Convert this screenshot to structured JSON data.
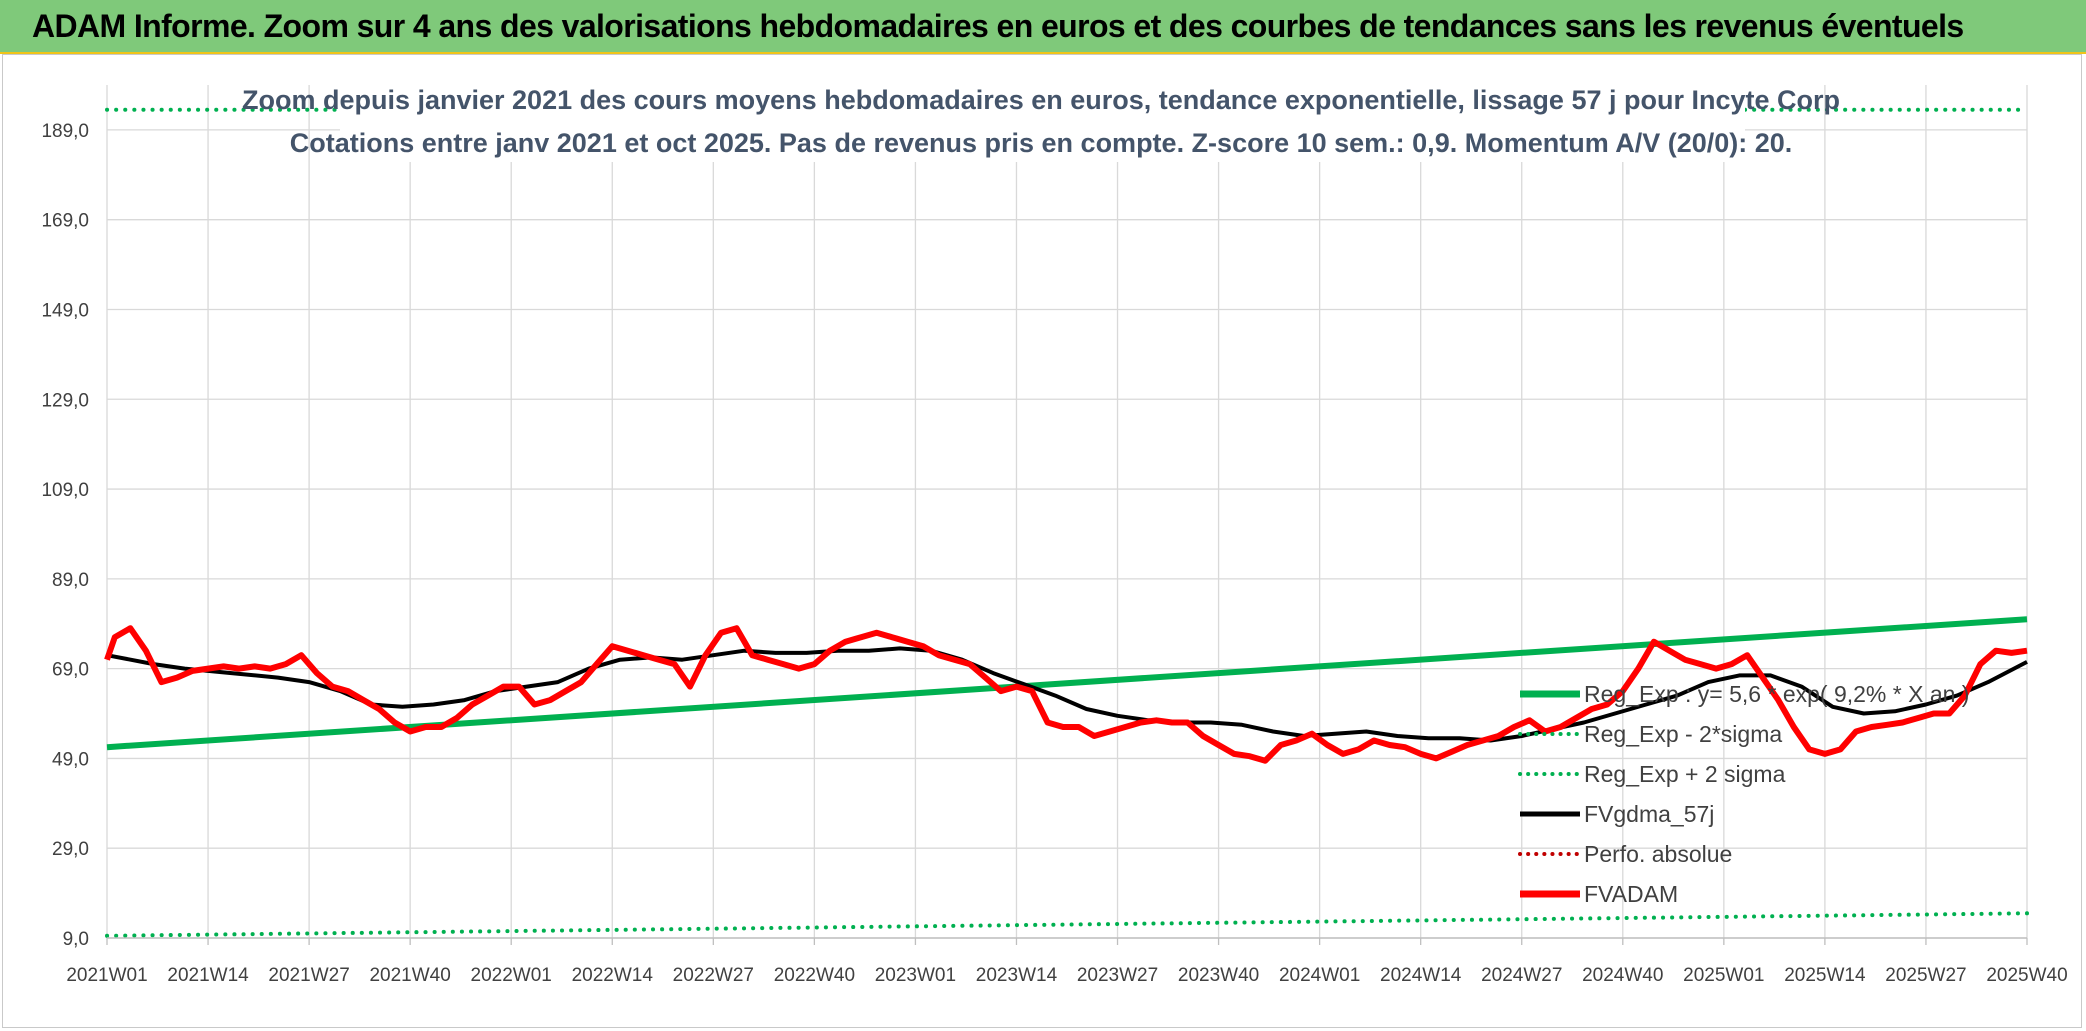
{
  "header": {
    "title": "ADAM Informe. Zoom sur 4 ans des valorisations hebdomadaires en euros et des courbes de tendances sans les revenus éventuels"
  },
  "colors": {
    "banner": "#7fc97a",
    "reg": "#00b050",
    "price": "#ff0000",
    "mma": "#000000",
    "perfo": "#c00000",
    "title_text": "#44546a"
  },
  "chart_data": {
    "type": "line",
    "title_line1": "Zoom depuis janvier 2021 des cours moyens hebdomadaires en euros, tendance exponentielle, lissage 57 j pour Incyte Corp",
    "title_line2": "Cotations entre janv 2021 et oct 2025. Pas de revenus pris en compte. Z-score 10 sem.: 0,9. Momentum A/V (20/0): 20.",
    "ylim": [
      9,
      199
    ],
    "yticks": [
      "9,0",
      "29,0",
      "49,0",
      "69,0",
      "89,0",
      "109,0",
      "129,0",
      "149,0",
      "169,0",
      "189,0"
    ],
    "ytick_values": [
      9,
      29,
      49,
      69,
      89,
      109,
      129,
      149,
      169,
      189
    ],
    "x_range": [
      0,
      247
    ],
    "xticks": [
      "2021W01",
      "2021W14",
      "2021W27",
      "2021W40",
      "2022W01",
      "2022W14",
      "2022W27",
      "2022W40",
      "2023W01",
      "2023W14",
      "2023W27",
      "2023W40",
      "2024W01",
      "2024W14",
      "2024W27",
      "2024W40",
      "2025W01",
      "2025W14",
      "2025W27",
      "2025W40"
    ],
    "xtick_positions": [
      0,
      13,
      26,
      39,
      52,
      65,
      78,
      91,
      104,
      117,
      130,
      143,
      156,
      169,
      182,
      195,
      208,
      221,
      234,
      247
    ],
    "series": [
      {
        "name": "Reg_Exp : y= 5,6 * exp( 9,2% * X an )",
        "style": "solid-thick",
        "x": [
          0,
          247
        ],
        "values": [
          51.5,
          80
        ]
      },
      {
        "name": "Reg_Exp - 2*sigma",
        "style": "dotted",
        "x": [
          0,
          247
        ],
        "values": [
          9.5,
          14.5
        ]
      },
      {
        "name": "Reg_Exp + 2 sigma",
        "style": "dotted",
        "x": [
          0,
          247
        ],
        "values": [
          193.5,
          193.5
        ]
      },
      {
        "name": "FVgdma_57j",
        "style": "solid",
        "x": [
          0,
          6,
          10,
          16,
          22,
          26,
          30,
          34,
          38,
          42,
          46,
          50,
          54,
          58,
          62,
          66,
          70,
          74,
          78,
          82,
          86,
          90,
          94,
          98,
          102,
          106,
          110,
          114,
          118,
          122,
          126,
          130,
          134,
          138,
          142,
          146,
          150,
          154,
          158,
          162,
          166,
          170,
          174,
          178,
          182,
          186,
          190,
          194,
          198,
          202,
          206,
          210,
          214,
          218,
          222,
          226,
          230,
          234,
          238,
          242,
          247
        ],
        "values": [
          72,
          70,
          69,
          68,
          67,
          66,
          64,
          61,
          60.5,
          61,
          62,
          64,
          65,
          66,
          69,
          71,
          71.5,
          71,
          72,
          73,
          72.5,
          72.5,
          73,
          73,
          73.5,
          73,
          71,
          68,
          65.5,
          63,
          60,
          58.5,
          57.5,
          57,
          57,
          56.5,
          55,
          54,
          54.5,
          55,
          54,
          53.5,
          53.5,
          53,
          54,
          55.5,
          57,
          59,
          61,
          63,
          66,
          67.5,
          67.5,
          65,
          60.5,
          59,
          59.5,
          61,
          63,
          66,
          70.5
        ]
      },
      {
        "name": "Perfo. absolue",
        "style": "dotted",
        "x": [],
        "values": []
      },
      {
        "name": "FVADAM",
        "style": "solid-thick",
        "x": [
          0,
          1,
          3,
          5,
          7,
          9,
          11,
          13,
          15,
          17,
          19,
          21,
          23,
          25,
          27,
          29,
          31,
          33,
          35,
          37,
          39,
          41,
          43,
          45,
          47,
          49,
          51,
          53,
          55,
          57,
          59,
          61,
          63,
          65,
          67,
          69,
          71,
          73,
          75,
          77,
          79,
          81,
          83,
          85,
          87,
          89,
          91,
          93,
          95,
          97,
          99,
          101,
          103,
          105,
          107,
          109,
          111,
          113,
          115,
          117,
          119,
          121,
          123,
          125,
          127,
          129,
          131,
          133,
          135,
          137,
          139,
          141,
          143,
          145,
          147,
          149,
          151,
          153,
          155,
          157,
          159,
          161,
          163,
          165,
          167,
          169,
          171,
          173,
          175,
          177,
          179,
          181,
          183,
          185,
          187,
          189,
          191,
          193,
          195,
          197,
          199,
          201,
          203,
          205,
          207,
          209,
          211,
          213,
          215,
          217,
          219,
          221,
          223,
          225,
          227,
          229,
          231,
          233,
          235,
          237,
          239,
          241,
          243,
          245,
          247
        ],
        "values": [
          71,
          76,
          78,
          73,
          66,
          67,
          68.5,
          69,
          69.5,
          69,
          69.5,
          69,
          70,
          72,
          68,
          65,
          64,
          62,
          60,
          57,
          55,
          56,
          56,
          58,
          61,
          63,
          65,
          65,
          61,
          62,
          64,
          66,
          70,
          74,
          73,
          72,
          71,
          70,
          65,
          72,
          77,
          78,
          72,
          71,
          70,
          69,
          70,
          73,
          75,
          76,
          77,
          76,
          75,
          74,
          72,
          71,
          70,
          67,
          64,
          65,
          64,
          57,
          56,
          56,
          54,
          55,
          56,
          57,
          57.5,
          57,
          57,
          54,
          52,
          50,
          49.5,
          48.5,
          52,
          53,
          54.5,
          52,
          50,
          51,
          53,
          52,
          51.5,
          50,
          49,
          50.5,
          52,
          53,
          54,
          56,
          57.5,
          55,
          56,
          58,
          60,
          61,
          64,
          69,
          75,
          73,
          71,
          70,
          69,
          70,
          72,
          67,
          62,
          56,
          51,
          50,
          51,
          55,
          56,
          56.5,
          57,
          58,
          59,
          59,
          63,
          70,
          73,
          72.5,
          73
        ]
      }
    ],
    "legend": [
      {
        "label": "Reg_Exp : y= 5,6 * exp( 9,2% * X an )",
        "style": "solid",
        "color": "#00b050"
      },
      {
        "label": "Reg_Exp - 2*sigma",
        "style": "dotted",
        "color": "#00b050"
      },
      {
        "label": "Reg_Exp + 2 sigma",
        "style": "dotted",
        "color": "#00b050"
      },
      {
        "label": "FVgdma_57j",
        "style": "solid",
        "color": "#000000"
      },
      {
        "label": "Perfo. absolue",
        "style": "dotted",
        "color": "#c00000"
      },
      {
        "label": "FVADAM",
        "style": "solid",
        "color": "#ff0000"
      }
    ],
    "legend_position": "bottom-right",
    "grid": true
  }
}
